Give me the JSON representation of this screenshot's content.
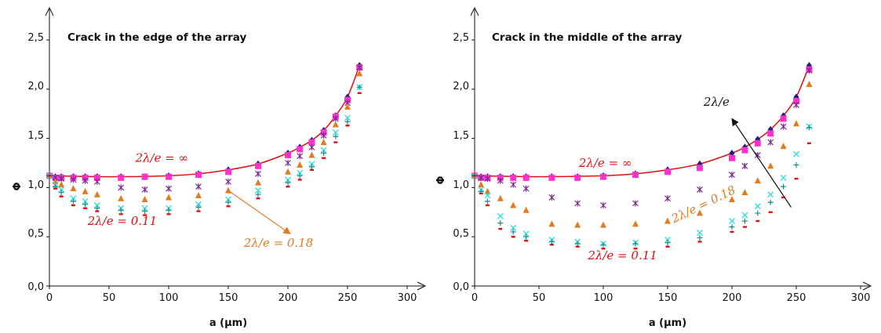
{
  "chart_data": [
    {
      "type": "scatter",
      "title": "Crack in the edge of the array",
      "xlabel": "a (µm)",
      "ylabel": "Φ",
      "xlim": [
        0,
        300
      ],
      "ylim": [
        0,
        2.5
      ],
      "xticks": [
        "0",
        "50",
        "100",
        "150",
        "200",
        "250",
        "300"
      ],
      "yticks": [
        "0,0",
        "0,5",
        "1,0",
        "1,5",
        "2,0",
        "2,5"
      ],
      "grid": false,
      "x": [
        0,
        5,
        10,
        20,
        30,
        40,
        60,
        80,
        100,
        125,
        150,
        175,
        200,
        210,
        220,
        230,
        240,
        250,
        260
      ],
      "series": [
        {
          "symbol": "diamond",
          "color": "#1a237e",
          "values": [
            1.12,
            1.11,
            1.11,
            1.11,
            1.11,
            1.11,
            1.11,
            1.11,
            1.12,
            1.14,
            1.18,
            1.24,
            1.35,
            1.41,
            1.48,
            1.58,
            1.73,
            1.92,
            2.24
          ]
        },
        {
          "symbol": "square",
          "color": "#ff33cc",
          "values": [
            1.12,
            1.1,
            1.1,
            1.1,
            1.1,
            1.1,
            1.1,
            1.11,
            1.11,
            1.13,
            1.16,
            1.22,
            1.33,
            1.39,
            1.46,
            1.56,
            1.72,
            1.89,
            2.22
          ]
        },
        {
          "symbol": "asterisk",
          "color": "#7b2a92",
          "values": [
            1.12,
            1.1,
            1.09,
            1.08,
            1.07,
            1.06,
            1.0,
            0.98,
            0.99,
            1.01,
            1.06,
            1.14,
            1.25,
            1.32,
            1.41,
            1.53,
            1.7,
            1.86,
            2.22
          ]
        },
        {
          "symbol": "triangle",
          "color": "#e07b20",
          "values": [
            1.12,
            1.06,
            1.03,
            0.99,
            0.96,
            0.93,
            0.89,
            0.88,
            0.9,
            0.92,
            0.97,
            1.05,
            1.16,
            1.23,
            1.33,
            1.46,
            1.64,
            1.82,
            2.16
          ]
        },
        {
          "symbol": "cross",
          "color": "#33dddd",
          "values": [
            1.12,
            1.03,
            0.98,
            0.89,
            0.86,
            0.82,
            0.79,
            0.79,
            0.79,
            0.83,
            0.88,
            0.97,
            1.08,
            1.15,
            1.24,
            1.38,
            1.56,
            1.71,
            2.02
          ]
        },
        {
          "symbol": "plus",
          "color": "#1b8a8a",
          "values": [
            1.12,
            1.01,
            0.95,
            0.86,
            0.83,
            0.79,
            0.77,
            0.76,
            0.77,
            0.8,
            0.85,
            0.93,
            1.05,
            1.12,
            1.21,
            1.35,
            1.52,
            1.67,
            2.02
          ]
        },
        {
          "symbol": "dash",
          "color": "#e01010",
          "values": [
            1.12,
            0.99,
            0.91,
            0.82,
            0.79,
            0.76,
            0.73,
            0.72,
            0.73,
            0.76,
            0.81,
            0.89,
            1.01,
            1.08,
            1.18,
            1.3,
            1.46,
            1.63,
            1.96
          ]
        }
      ],
      "fit_curve": {
        "color": "#e01010",
        "x": [
          0,
          50,
          100,
          125,
          150,
          175,
          200,
          210,
          220,
          230,
          240,
          250,
          260
        ],
        "y": [
          1.12,
          1.11,
          1.12,
          1.14,
          1.18,
          1.24,
          1.35,
          1.41,
          1.48,
          1.58,
          1.73,
          1.92,
          2.24
        ]
      },
      "annotations": [
        {
          "text": "2λ/e = ∞",
          "color": "#e01010",
          "x": 72,
          "y": 1.26,
          "anchor": "start",
          "rotate": 0
        },
        {
          "text": "2λ/e = 0.11",
          "color": "#e01010",
          "x": 32,
          "y": 0.62,
          "anchor": "start",
          "rotate": 0
        },
        {
          "text": "2λ/e = 0.18",
          "color": "#e07b20",
          "x": 163,
          "y": 0.4,
          "anchor": "start",
          "rotate": 0
        }
      ],
      "arrows": [
        {
          "color": "#e07b20",
          "from": [
            150,
            0.97
          ],
          "to": [
            202,
            0.53
          ]
        }
      ]
    },
    {
      "type": "scatter",
      "title": "Crack in the middle of the array",
      "xlabel": "a (µm)",
      "ylabel": "Φ",
      "xlim": [
        0,
        300
      ],
      "ylim": [
        0,
        2.5
      ],
      "xticks": [
        "0",
        "50",
        "100",
        "150",
        "200",
        "250",
        "300"
      ],
      "yticks": [
        "0,0",
        "0,5",
        "1,0",
        "1,5",
        "2,0",
        "2,5"
      ],
      "grid": false,
      "x": [
        0,
        5,
        10,
        20,
        30,
        40,
        60,
        80,
        100,
        125,
        150,
        175,
        200,
        210,
        220,
        230,
        240,
        250,
        260
      ],
      "series": [
        {
          "symbol": "diamond",
          "color": "#1a237e",
          "values": [
            1.12,
            1.11,
            1.11,
            1.11,
            1.11,
            1.11,
            1.11,
            1.11,
            1.12,
            1.14,
            1.18,
            1.24,
            1.35,
            1.41,
            1.49,
            1.59,
            1.73,
            1.92,
            2.24
          ]
        },
        {
          "symbol": "square",
          "color": "#ff33cc",
          "values": [
            1.12,
            1.1,
            1.1,
            1.1,
            1.1,
            1.1,
            1.1,
            1.1,
            1.11,
            1.13,
            1.16,
            1.2,
            1.3,
            1.38,
            1.45,
            1.55,
            1.7,
            1.88,
            2.2
          ]
        },
        {
          "symbol": "asterisk",
          "color": "#7b2a92",
          "values": [
            1.12,
            1.1,
            1.09,
            1.07,
            1.03,
            0.99,
            0.9,
            0.84,
            0.82,
            0.84,
            0.89,
            0.98,
            1.13,
            1.22,
            1.33,
            1.46,
            1.62,
            1.84,
            2.19
          ]
        },
        {
          "symbol": "triangle",
          "color": "#e07b20",
          "values": [
            1.12,
            1.03,
            0.96,
            0.89,
            0.82,
            0.77,
            0.63,
            0.62,
            0.62,
            0.63,
            0.66,
            0.74,
            0.88,
            0.95,
            1.07,
            1.22,
            1.42,
            1.65,
            2.05
          ]
        },
        {
          "symbol": "cross",
          "color": "#33dddd",
          "values": [
            1.12,
            0.98,
            0.92,
            0.71,
            0.59,
            0.53,
            0.47,
            0.45,
            0.43,
            0.44,
            0.47,
            0.54,
            0.66,
            0.72,
            0.81,
            0.93,
            1.1,
            1.34,
            1.62
          ]
        },
        {
          "symbol": "plus",
          "color": "#1b8a8a",
          "values": [
            1.12,
            0.96,
            0.86,
            0.64,
            0.55,
            0.5,
            0.45,
            0.43,
            0.42,
            0.43,
            0.44,
            0.49,
            0.6,
            0.66,
            0.74,
            0.85,
            1.01,
            1.23,
            1.61
          ]
        },
        {
          "symbol": "dash",
          "color": "#e01010",
          "values": [
            1.12,
            0.94,
            0.82,
            0.58,
            0.5,
            0.46,
            0.42,
            0.4,
            0.38,
            0.38,
            0.4,
            0.45,
            0.55,
            0.6,
            0.66,
            0.75,
            0.9,
            1.09,
            1.45
          ]
        }
      ],
      "fit_curve": {
        "color": "#e01010",
        "x": [
          0,
          50,
          100,
          125,
          150,
          175,
          200,
          210,
          220,
          230,
          240,
          250,
          260
        ],
        "y": [
          1.12,
          1.11,
          1.12,
          1.14,
          1.18,
          1.24,
          1.35,
          1.41,
          1.49,
          1.59,
          1.73,
          1.92,
          2.24
        ]
      },
      "annotations": [
        {
          "text": "2λ/e = ∞",
          "color": "#e01010",
          "x": 81,
          "y": 1.21,
          "anchor": "start",
          "rotate": 0
        },
        {
          "text": "2λ/e = 0.11",
          "color": "#e01010",
          "x": 88,
          "y": 0.27,
          "anchor": "start",
          "rotate": 0
        },
        {
          "text": "2λ/e = 0.18",
          "color": "#e07b20",
          "x": 155,
          "y": 0.64,
          "anchor": "start",
          "rotate": -26
        },
        {
          "text": "2λ/e",
          "color": "#111111",
          "x": 178,
          "y": 1.83,
          "anchor": "start",
          "rotate": 0
        }
      ],
      "arrows": [
        {
          "color": "#111111",
          "from": [
            246,
            0.8
          ],
          "to": [
            200,
            1.7
          ]
        }
      ]
    }
  ]
}
